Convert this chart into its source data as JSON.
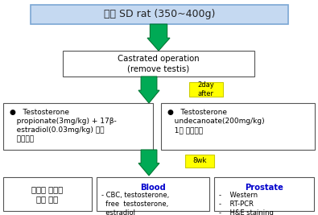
{
  "title": "정상 SD rat (350~400g)",
  "box1_text": "Castrated operation\n(remove testis)",
  "box_left_text": "●   Testosterone\n   propionate(3mg/kg) + 17β-\n   estradiol(0.03mg/kg) 매일\n   근육투여",
  "box_right_text": "●   Testosterone\n   undecanoate(200mg/kg)\n   1회 근육투여",
  "box_bottom_left_text": "전립선 요도부\n내압 측정",
  "label_2day": "2day\nafter",
  "label_8wk": "8wk",
  "bg_color": "#ffffff",
  "top_box_fill": "#c5d9f1",
  "top_box_edge": "#7ba7d4",
  "white_box_edge": "#555555",
  "arrow_color": "#00aa55",
  "arrow_edge": "#007733",
  "yellow_fill": "#ffff00",
  "yellow_edge": "#cccc00",
  "blood_title_color": "#0000cc",
  "prostate_title_color": "#0000cc",
  "font_size_title": 9,
  "font_size_box": 6.8,
  "font_size_small": 6.5
}
